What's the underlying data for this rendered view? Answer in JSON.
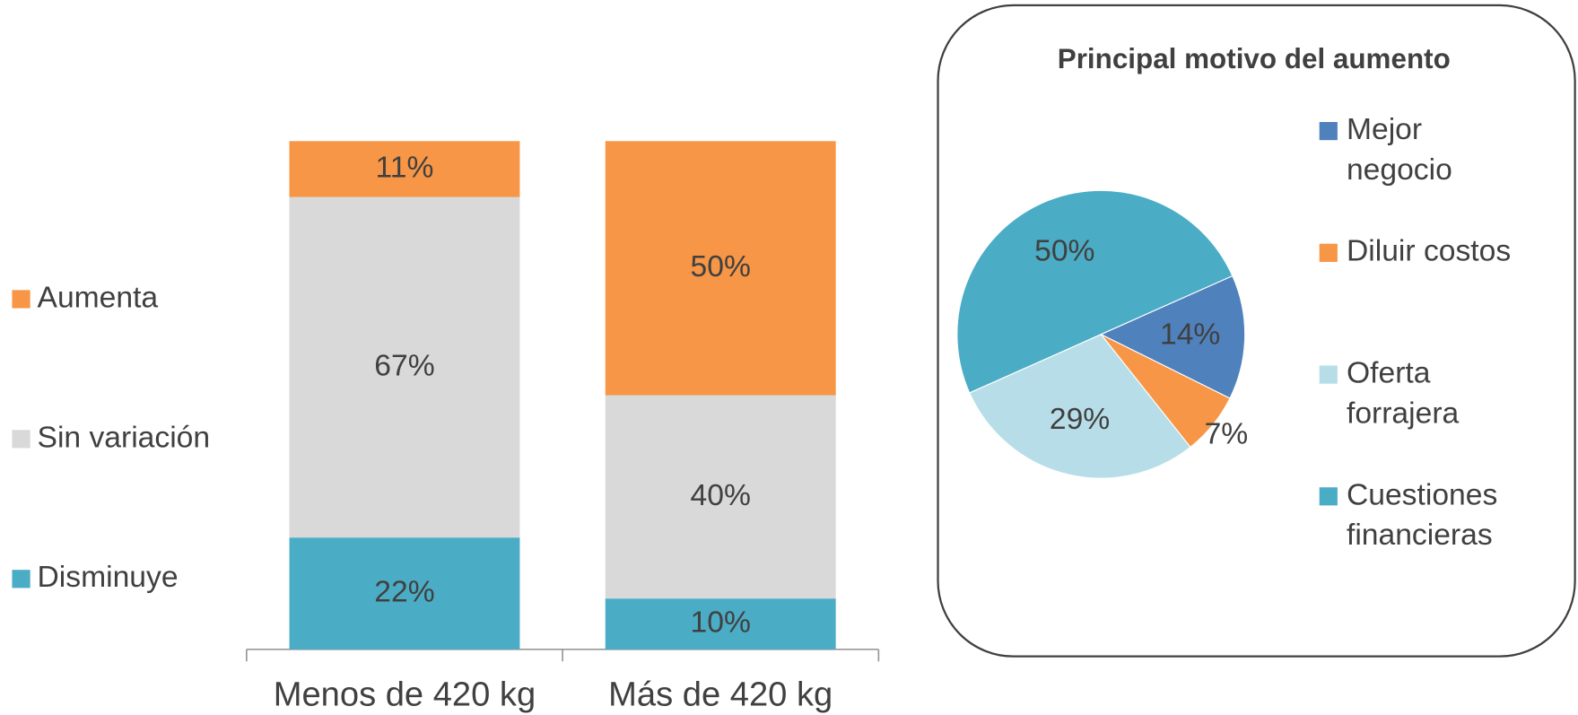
{
  "chart_data": [
    {
      "type": "stacked_bar",
      "categories": [
        "Menos de 420 kg",
        "Más de 420 kg"
      ],
      "series": [
        {
          "name": "Disminuye",
          "color": "#4bacc6",
          "values": [
            22,
            10
          ],
          "value_labels": [
            "22%",
            "10%"
          ]
        },
        {
          "name": "Sin variación",
          "color": "#d9d9d9",
          "values": [
            67,
            40
          ],
          "value_labels": [
            "67%",
            "40%"
          ]
        },
        {
          "name": "Aumenta",
          "color": "#f79646",
          "values": [
            11,
            50
          ],
          "value_labels": [
            "11%",
            "50%"
          ]
        }
      ],
      "ylim": [
        0,
        100
      ],
      "legend": "left"
    },
    {
      "type": "pie",
      "title": "Principal motivo del aumento",
      "categories": [
        "Mejor negocio",
        "Diluir costos",
        "Oferta forrajera",
        "Cuestiones financieras"
      ],
      "values": [
        14,
        7,
        29,
        50
      ],
      "value_labels": [
        "14%",
        "7%",
        "29%",
        "50%"
      ],
      "colors": [
        "#4f81bd",
        "#f79646",
        "#b7dee8",
        "#4bacc6"
      ],
      "legend": "right"
    }
  ]
}
